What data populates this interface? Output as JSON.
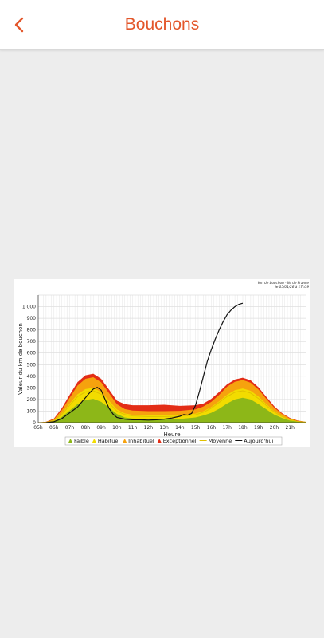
{
  "header": {
    "title": "Bouchons",
    "back_icon": "chevron-left-icon",
    "accent": "#e3562a"
  },
  "chart_data": {
    "type": "area",
    "note_line1": "Km de bouchon - Ile de France",
    "note_line2": "le 05/01/26 à 17h59",
    "xlabel": "Heure",
    "ylabel": "Valeur du km de bouchon",
    "ylim": [
      0,
      1100
    ],
    "yticks": [
      0,
      100,
      200,
      300,
      400,
      500,
      600,
      700,
      800,
      900,
      "1 000"
    ],
    "categories": [
      "05h",
      "06h",
      "07h",
      "08h",
      "09h",
      "10h",
      "11h",
      "12h",
      "13h",
      "14h",
      "15h",
      "16h",
      "17h",
      "18h",
      "19h",
      "20h",
      "21h"
    ],
    "x": [
      5,
      5.5,
      6,
      6.5,
      7,
      7.5,
      8,
      8.5,
      9,
      9.5,
      10,
      10.5,
      11,
      12,
      13,
      14,
      15,
      15.5,
      16,
      16.5,
      17,
      17.5,
      18,
      18.5,
      19,
      19.5,
      20,
      20.5,
      21,
      21.5,
      22
    ],
    "series": [
      {
        "name": "Faible",
        "color": "#8db718",
        "values": [
          0,
          2,
          12,
          50,
          105,
          160,
          195,
          205,
          180,
          130,
          75,
          45,
          35,
          30,
          30,
          32,
          45,
          62,
          85,
          120,
          165,
          200,
          215,
          200,
          160,
          115,
          70,
          40,
          18,
          8,
          3
        ]
      },
      {
        "name": "Habituel",
        "color": "#f2dc00",
        "values": [
          0,
          4,
          20,
          80,
          165,
          245,
          290,
          300,
          265,
          190,
          115,
          80,
          68,
          62,
          62,
          65,
          78,
          100,
          135,
          185,
          240,
          280,
          295,
          275,
          225,
          160,
          100,
          58,
          28,
          12,
          5
        ]
      },
      {
        "name": "Inhabituel",
        "color": "#f6a20e",
        "values": [
          0,
          6,
          28,
          108,
          215,
          320,
          378,
          392,
          348,
          255,
          160,
          118,
          105,
          100,
          100,
          102,
          115,
          140,
          180,
          240,
          310,
          352,
          368,
          345,
          285,
          205,
          130,
          75,
          35,
          15,
          6
        ]
      },
      {
        "name": "Exceptionnel",
        "color": "#e32d16",
        "values": [
          0,
          8,
          35,
          125,
          240,
          350,
          408,
          422,
          378,
          285,
          190,
          160,
          150,
          150,
          155,
          145,
          150,
          165,
          205,
          265,
          330,
          372,
          388,
          365,
          305,
          222,
          142,
          82,
          40,
          18,
          7
        ]
      }
    ],
    "moyenne": {
      "name": "Moyenne",
      "color": "#e0c000",
      "values": [
        0,
        3,
        18,
        70,
        150,
        225,
        265,
        275,
        245,
        170,
        100,
        70,
        58,
        52,
        52,
        55,
        68,
        90,
        125,
        175,
        225,
        262,
        275,
        255,
        208,
        148,
        92,
        52,
        25,
        10,
        4
      ]
    },
    "aujourdhui": {
      "name": "Aujourd'hui",
      "color": "#111111",
      "x": [
        5.5,
        6,
        6.5,
        6.75,
        7,
        7.25,
        7.5,
        7.75,
        8,
        8.25,
        8.5,
        8.75,
        9,
        9.25,
        9.5,
        9.75,
        10,
        10.5,
        11,
        11.5,
        12,
        12.5,
        13,
        13.5,
        14,
        14.25,
        14.5,
        14.75,
        15,
        15.25,
        15.5,
        15.75,
        16,
        16.25,
        16.5,
        16.75,
        17,
        17.25,
        17.5,
        17.75,
        18
      ],
      "values": [
        0,
        8,
        35,
        60,
        85,
        110,
        135,
        175,
        215,
        255,
        290,
        305,
        280,
        200,
        125,
        75,
        45,
        30,
        25,
        25,
        22,
        25,
        30,
        40,
        55,
        70,
        65,
        80,
        150,
        270,
        400,
        530,
        630,
        720,
        800,
        870,
        930,
        970,
        1000,
        1020,
        1030
      ]
    },
    "legend": [
      {
        "label": "Faible",
        "color": "#8db718",
        "marker": "triangle"
      },
      {
        "label": "Habituel",
        "color": "#f2dc00",
        "marker": "triangle"
      },
      {
        "label": "Inhabituel",
        "color": "#f6a20e",
        "marker": "triangle"
      },
      {
        "label": "Exceptionnel",
        "color": "#e32d16",
        "marker": "triangle"
      },
      {
        "label": "Moyenne",
        "color": "#e0c000",
        "marker": "line"
      },
      {
        "label": "Aujourd'hui",
        "color": "#111111",
        "marker": "line"
      }
    ],
    "grid": true,
    "legend_position": "bottom"
  }
}
